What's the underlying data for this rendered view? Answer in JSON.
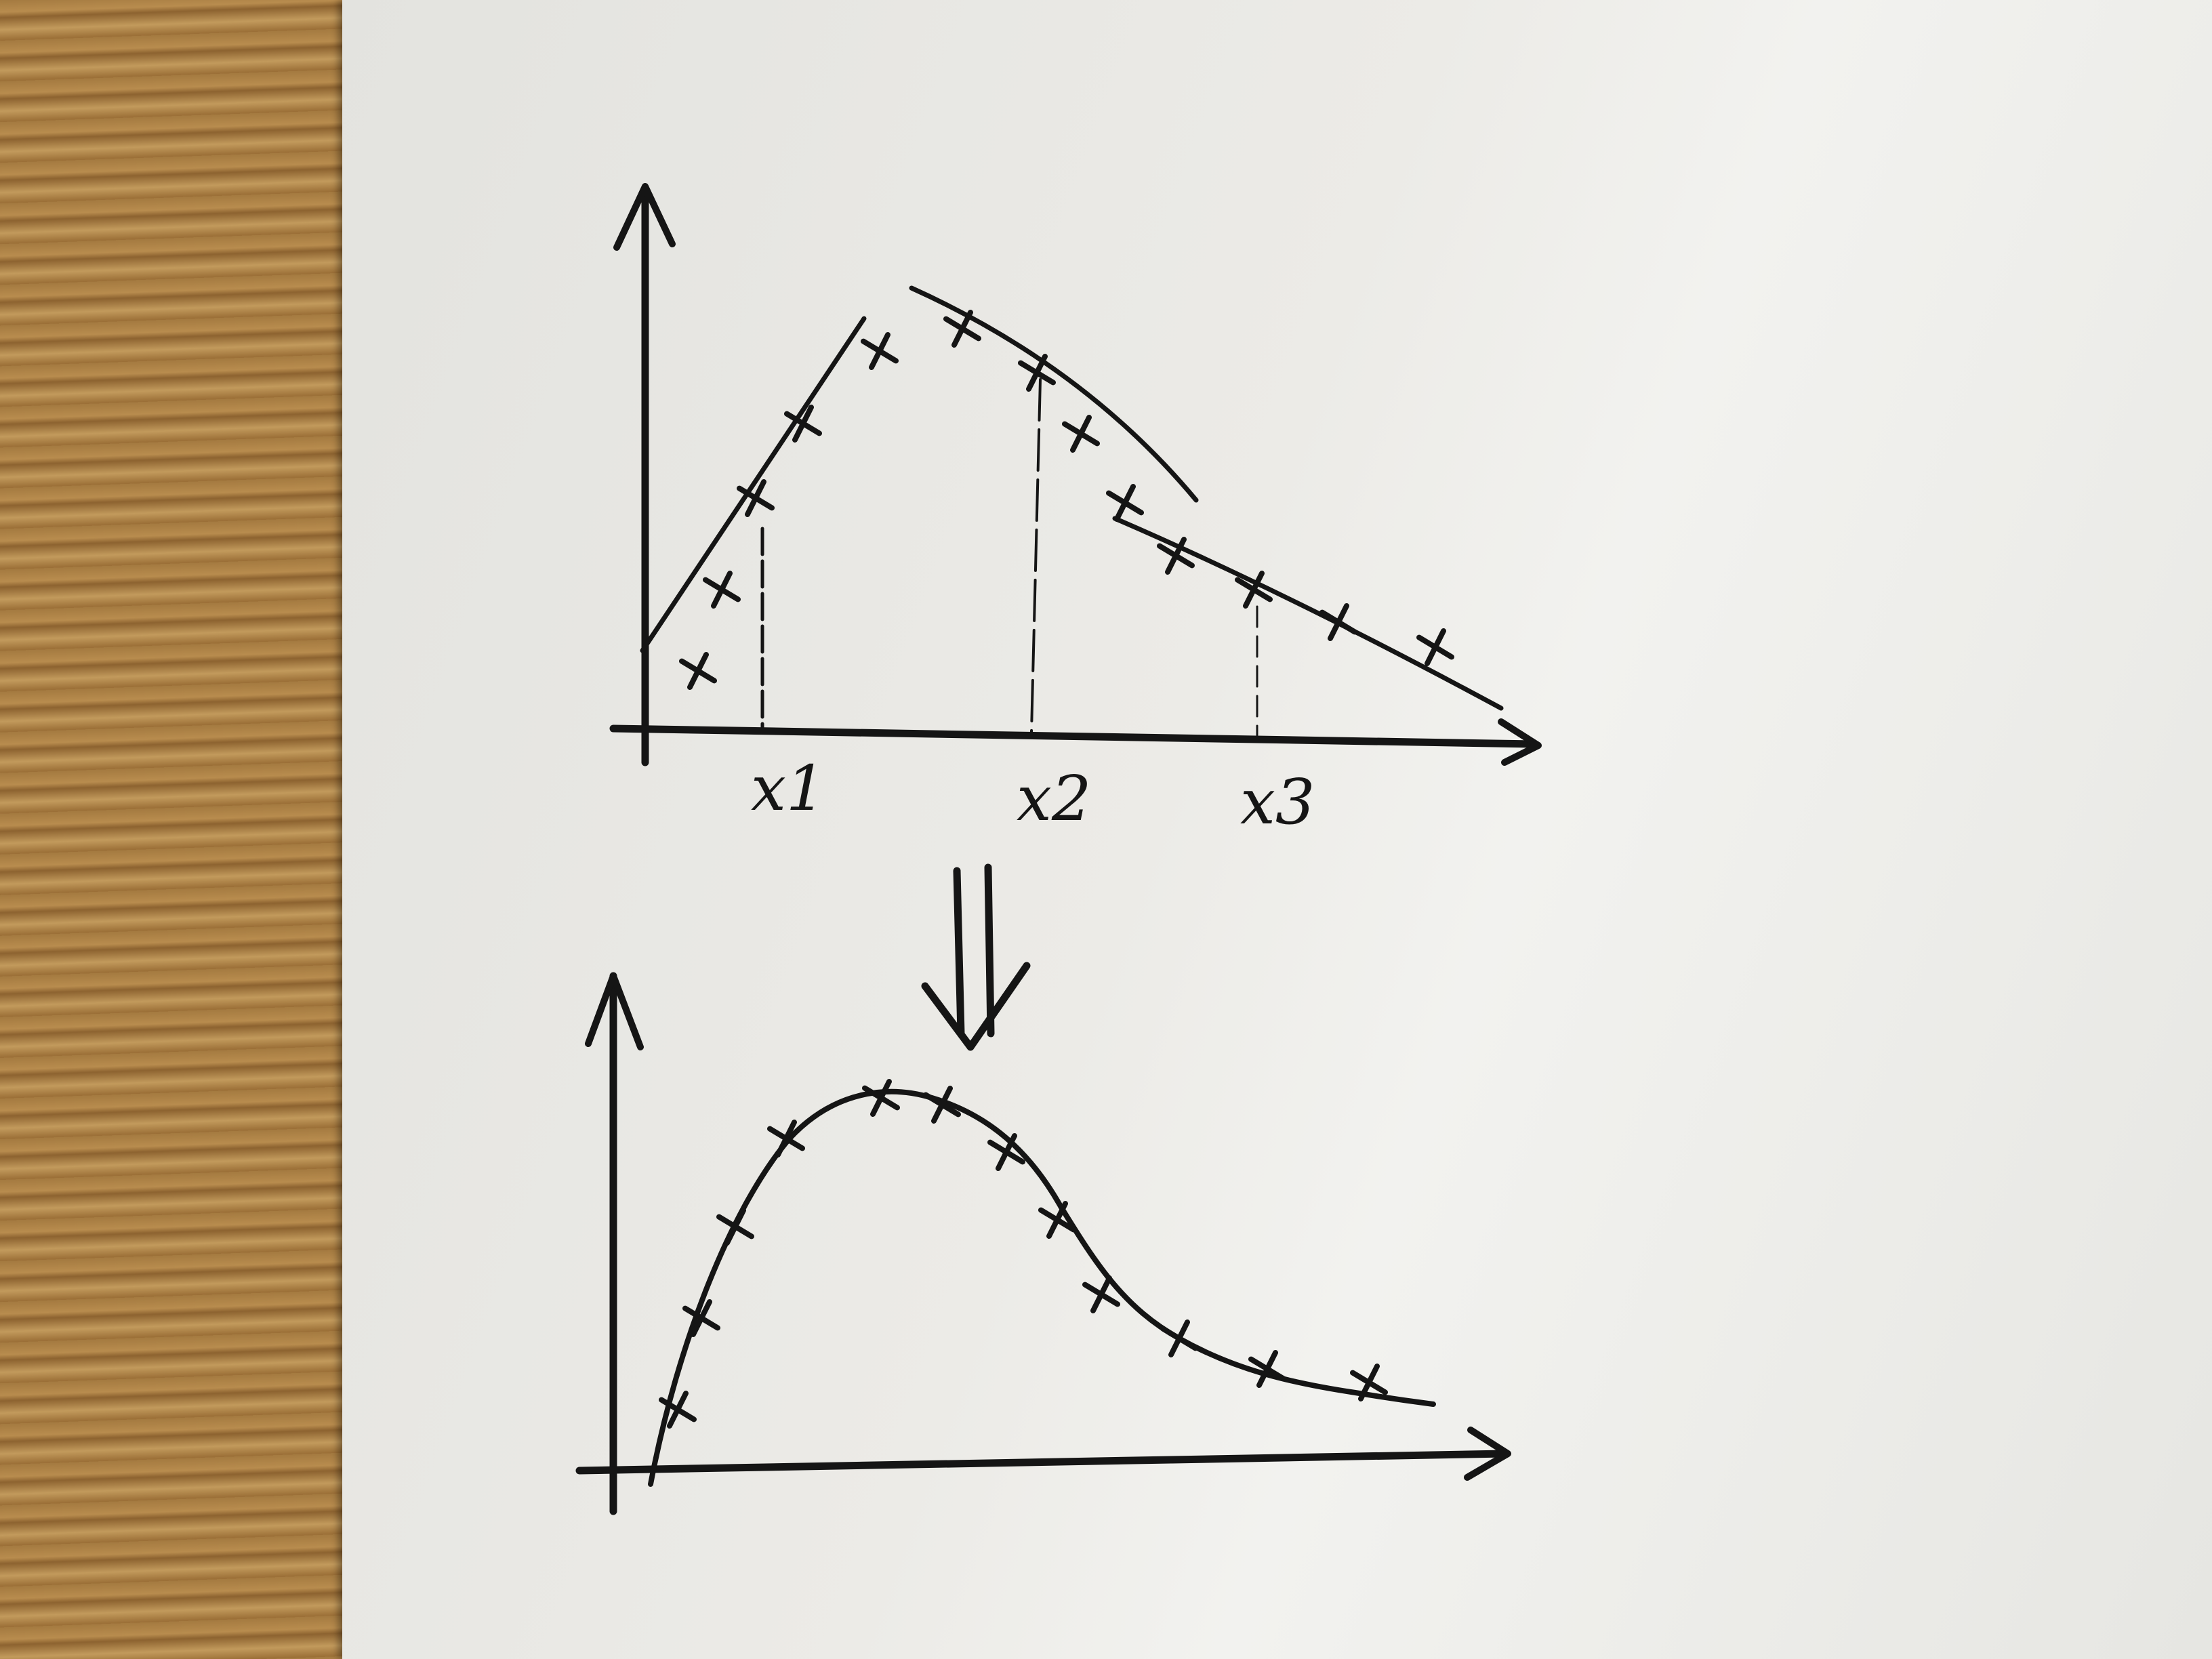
{
  "top_graph": {
    "x_labels": [
      "x1",
      "x2",
      "x3"
    ]
  },
  "transition": {
    "arrow_icon": "double-down-arrow-icon"
  }
}
